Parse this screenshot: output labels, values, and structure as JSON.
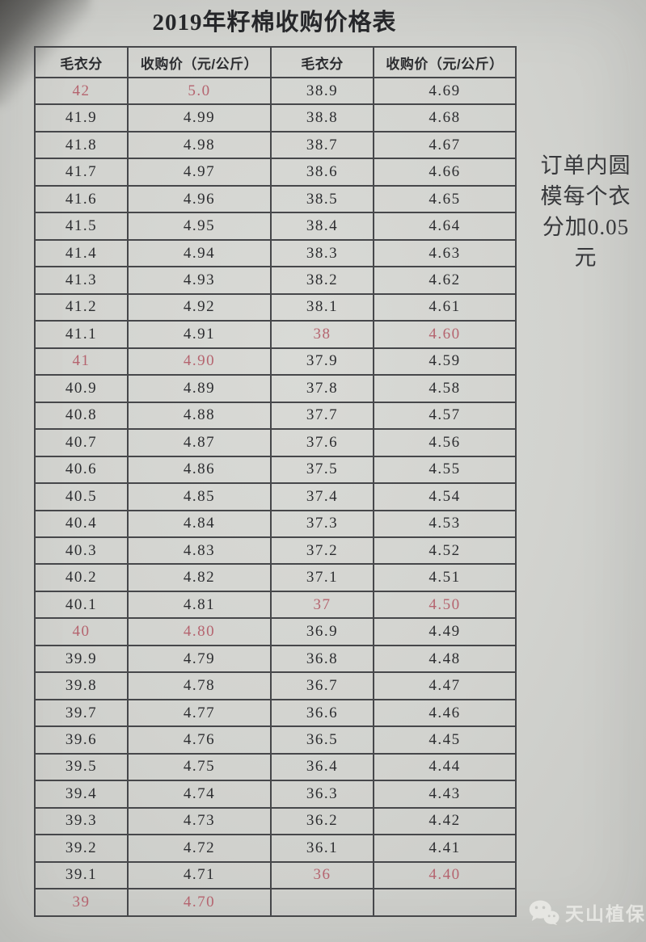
{
  "title": "2019年籽棉收购价格表",
  "table": {
    "headers": [
      "毛衣分",
      "收购价（元/公斤）",
      "毛衣分",
      "收购价（元/公斤）"
    ],
    "rows": [
      {
        "cells": [
          "42",
          "5.0",
          "38.9",
          "4.69"
        ],
        "red": [
          true,
          true,
          false,
          false
        ]
      },
      {
        "cells": [
          "41.9",
          "4.99",
          "38.8",
          "4.68"
        ],
        "red": [
          false,
          false,
          false,
          false
        ]
      },
      {
        "cells": [
          "41.8",
          "4.98",
          "38.7",
          "4.67"
        ],
        "red": [
          false,
          false,
          false,
          false
        ]
      },
      {
        "cells": [
          "41.7",
          "4.97",
          "38.6",
          "4.66"
        ],
        "red": [
          false,
          false,
          false,
          false
        ]
      },
      {
        "cells": [
          "41.6",
          "4.96",
          "38.5",
          "4.65"
        ],
        "red": [
          false,
          false,
          false,
          false
        ]
      },
      {
        "cells": [
          "41.5",
          "4.95",
          "38.4",
          "4.64"
        ],
        "red": [
          false,
          false,
          false,
          false
        ]
      },
      {
        "cells": [
          "41.4",
          "4.94",
          "38.3",
          "4.63"
        ],
        "red": [
          false,
          false,
          false,
          false
        ]
      },
      {
        "cells": [
          "41.3",
          "4.93",
          "38.2",
          "4.62"
        ],
        "red": [
          false,
          false,
          false,
          false
        ]
      },
      {
        "cells": [
          "41.2",
          "4.92",
          "38.1",
          "4.61"
        ],
        "red": [
          false,
          false,
          false,
          false
        ]
      },
      {
        "cells": [
          "41.1",
          "4.91",
          "38",
          "4.60"
        ],
        "red": [
          false,
          false,
          true,
          true
        ]
      },
      {
        "cells": [
          "41",
          "4.90",
          "37.9",
          "4.59"
        ],
        "red": [
          true,
          true,
          false,
          false
        ]
      },
      {
        "cells": [
          "40.9",
          "4.89",
          "37.8",
          "4.58"
        ],
        "red": [
          false,
          false,
          false,
          false
        ]
      },
      {
        "cells": [
          "40.8",
          "4.88",
          "37.7",
          "4.57"
        ],
        "red": [
          false,
          false,
          false,
          false
        ]
      },
      {
        "cells": [
          "40.7",
          "4.87",
          "37.6",
          "4.56"
        ],
        "red": [
          false,
          false,
          false,
          false
        ]
      },
      {
        "cells": [
          "40.6",
          "4.86",
          "37.5",
          "4.55"
        ],
        "red": [
          false,
          false,
          false,
          false
        ]
      },
      {
        "cells": [
          "40.5",
          "4.85",
          "37.4",
          "4.54"
        ],
        "red": [
          false,
          false,
          false,
          false
        ]
      },
      {
        "cells": [
          "40.4",
          "4.84",
          "37.3",
          "4.53"
        ],
        "red": [
          false,
          false,
          false,
          false
        ]
      },
      {
        "cells": [
          "40.3",
          "4.83",
          "37.2",
          "4.52"
        ],
        "red": [
          false,
          false,
          false,
          false
        ]
      },
      {
        "cells": [
          "40.2",
          "4.82",
          "37.1",
          "4.51"
        ],
        "red": [
          false,
          false,
          false,
          false
        ]
      },
      {
        "cells": [
          "40.1",
          "4.81",
          "37",
          "4.50"
        ],
        "red": [
          false,
          false,
          true,
          true
        ]
      },
      {
        "cells": [
          "40",
          "4.80",
          "36.9",
          "4.49"
        ],
        "red": [
          true,
          true,
          false,
          false
        ]
      },
      {
        "cells": [
          "39.9",
          "4.79",
          "36.8",
          "4.48"
        ],
        "red": [
          false,
          false,
          false,
          false
        ]
      },
      {
        "cells": [
          "39.8",
          "4.78",
          "36.7",
          "4.47"
        ],
        "red": [
          false,
          false,
          false,
          false
        ]
      },
      {
        "cells": [
          "39.7",
          "4.77",
          "36.6",
          "4.46"
        ],
        "red": [
          false,
          false,
          false,
          false
        ]
      },
      {
        "cells": [
          "39.6",
          "4.76",
          "36.5",
          "4.45"
        ],
        "red": [
          false,
          false,
          false,
          false
        ]
      },
      {
        "cells": [
          "39.5",
          "4.75",
          "36.4",
          "4.44"
        ],
        "red": [
          false,
          false,
          false,
          false
        ]
      },
      {
        "cells": [
          "39.4",
          "4.74",
          "36.3",
          "4.43"
        ],
        "red": [
          false,
          false,
          false,
          false
        ]
      },
      {
        "cells": [
          "39.3",
          "4.73",
          "36.2",
          "4.42"
        ],
        "red": [
          false,
          false,
          false,
          false
        ]
      },
      {
        "cells": [
          "39.2",
          "4.72",
          "36.1",
          "4.41"
        ],
        "red": [
          false,
          false,
          false,
          false
        ]
      },
      {
        "cells": [
          "39.1",
          "4.71",
          "36",
          "4.40"
        ],
        "red": [
          false,
          false,
          true,
          true
        ]
      },
      {
        "cells": [
          "39",
          "4.70",
          "",
          ""
        ],
        "red": [
          true,
          true,
          false,
          false
        ]
      }
    ]
  },
  "side_note": {
    "lines": [
      "订单内圆",
      "模每个衣",
      "分加0.05",
      "元"
    ],
    "full_text": "订单内圆模每个衣分加0.05元"
  },
  "watermark": {
    "icon": "wechat-icon",
    "label": "天山植保"
  },
  "colors": {
    "paper": "#d2d3cf",
    "ink": "#2c2d30",
    "red_ink": "#b5646f",
    "border": "#46474a",
    "watermark": "#ecece8"
  }
}
